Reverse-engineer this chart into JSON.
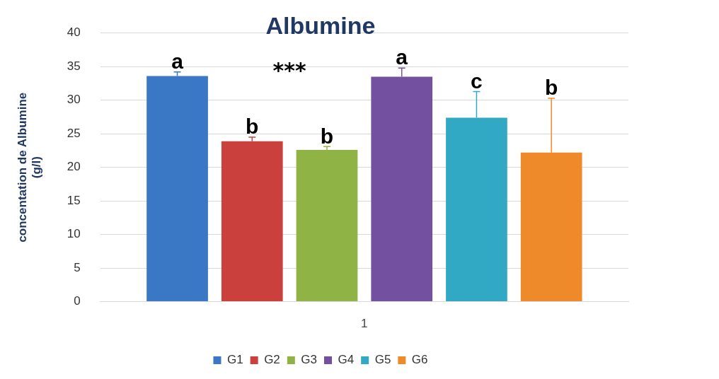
{
  "chart_data": {
    "type": "bar",
    "title": "Albumine",
    "ylabel": "concentation de Albumine\n(g/l)",
    "categories": [
      "1"
    ],
    "series": [
      {
        "name": "G1",
        "color": "#3a78c6",
        "values": [
          33.6
        ],
        "errors": [
          [
            33.6,
            34.2
          ]
        ],
        "value_labels": [
          "a"
        ]
      },
      {
        "name": "G2",
        "color": "#c9403c",
        "values": [
          23.9
        ],
        "errors": [
          [
            23.9,
            24.5
          ]
        ],
        "value_labels": [
          "b"
        ]
      },
      {
        "name": "G3",
        "color": "#8fb344",
        "values": [
          22.6
        ],
        "errors": [
          [
            22.6,
            23.1
          ]
        ],
        "value_labels": [
          "b"
        ]
      },
      {
        "name": "G4",
        "color": "#7450a0",
        "values": [
          33.5
        ],
        "errors": [
          [
            33.5,
            34.8
          ]
        ],
        "value_labels": [
          "a"
        ]
      },
      {
        "name": "G5",
        "color": "#31a9c5",
        "values": [
          27.4
        ],
        "errors": [
          [
            27.4,
            31.3
          ]
        ],
        "value_labels": [
          "c"
        ]
      },
      {
        "name": "G6",
        "color": "#ef8a2a",
        "values": [
          22.2
        ],
        "errors": [
          [
            22.2,
            30.3
          ]
        ],
        "value_labels": [
          "b"
        ]
      }
    ],
    "annotations": [
      "***"
    ],
    "ylim": [
      0,
      40
    ],
    "yticks": [
      0,
      5,
      10,
      15,
      20,
      25,
      30,
      35,
      40
    ],
    "grid": "y",
    "legend": "bottom"
  }
}
